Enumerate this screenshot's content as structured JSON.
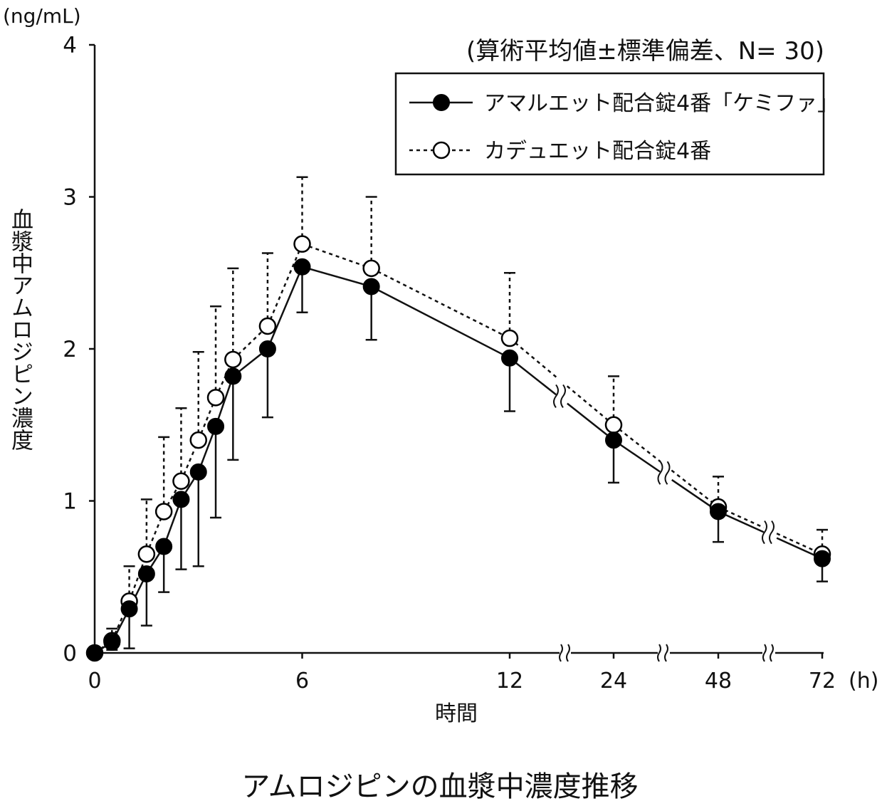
{
  "chart_data": {
    "type": "line",
    "title": "アムロジピンの血漿中濃度推移",
    "subtitle": "(算術平均値±標準偏差、N= 30)",
    "ylabel": "血漿中アムロジピン濃度",
    "yunit": "(ng/mL)",
    "xlabel": "時間",
    "xunit": "(h)",
    "ylim": [
      0,
      4
    ],
    "yticks": [
      "0",
      "1",
      "2",
      "3",
      "4"
    ],
    "xticks": [
      "0",
      "6",
      "12",
      "24",
      "48",
      "72"
    ],
    "x_axis_breaks": [
      "12-24",
      "24-48",
      "48-72"
    ],
    "grid": false,
    "legend_position": "top-right",
    "series": [
      {
        "name": "アマルエット配合錠4番「ケミファ」",
        "marker": "filled-circle",
        "line": "solid",
        "color": "#000000",
        "x": [
          0,
          0.5,
          1,
          1.5,
          2,
          2.5,
          3,
          3.5,
          4,
          5,
          6,
          8,
          12,
          24,
          48,
          72
        ],
        "y": [
          0.0,
          0.07,
          0.29,
          0.52,
          0.7,
          1.01,
          1.19,
          1.49,
          1.82,
          2.0,
          2.54,
          2.41,
          1.94,
          1.4,
          0.93,
          0.62
        ],
        "sd": [
          0.0,
          0.05,
          0.26,
          0.34,
          0.3,
          0.46,
          0.62,
          0.6,
          0.55,
          0.45,
          0.3,
          0.35,
          0.35,
          0.28,
          0.2,
          0.15
        ]
      },
      {
        "name": "カデュエット配合錠4番",
        "marker": "open-circle",
        "line": "dashed",
        "color": "#000000",
        "x": [
          0,
          0.5,
          1,
          1.5,
          2,
          2.5,
          3,
          3.5,
          4,
          5,
          6,
          8,
          12,
          24,
          48,
          72
        ],
        "y": [
          0.0,
          0.08,
          0.34,
          0.65,
          0.93,
          1.13,
          1.4,
          1.68,
          1.93,
          2.15,
          2.69,
          2.53,
          2.07,
          1.5,
          0.96,
          0.65
        ],
        "sd": [
          0.0,
          0.08,
          0.23,
          0.36,
          0.49,
          0.48,
          0.58,
          0.6,
          0.6,
          0.48,
          0.44,
          0.47,
          0.43,
          0.32,
          0.2,
          0.16
        ]
      }
    ]
  }
}
